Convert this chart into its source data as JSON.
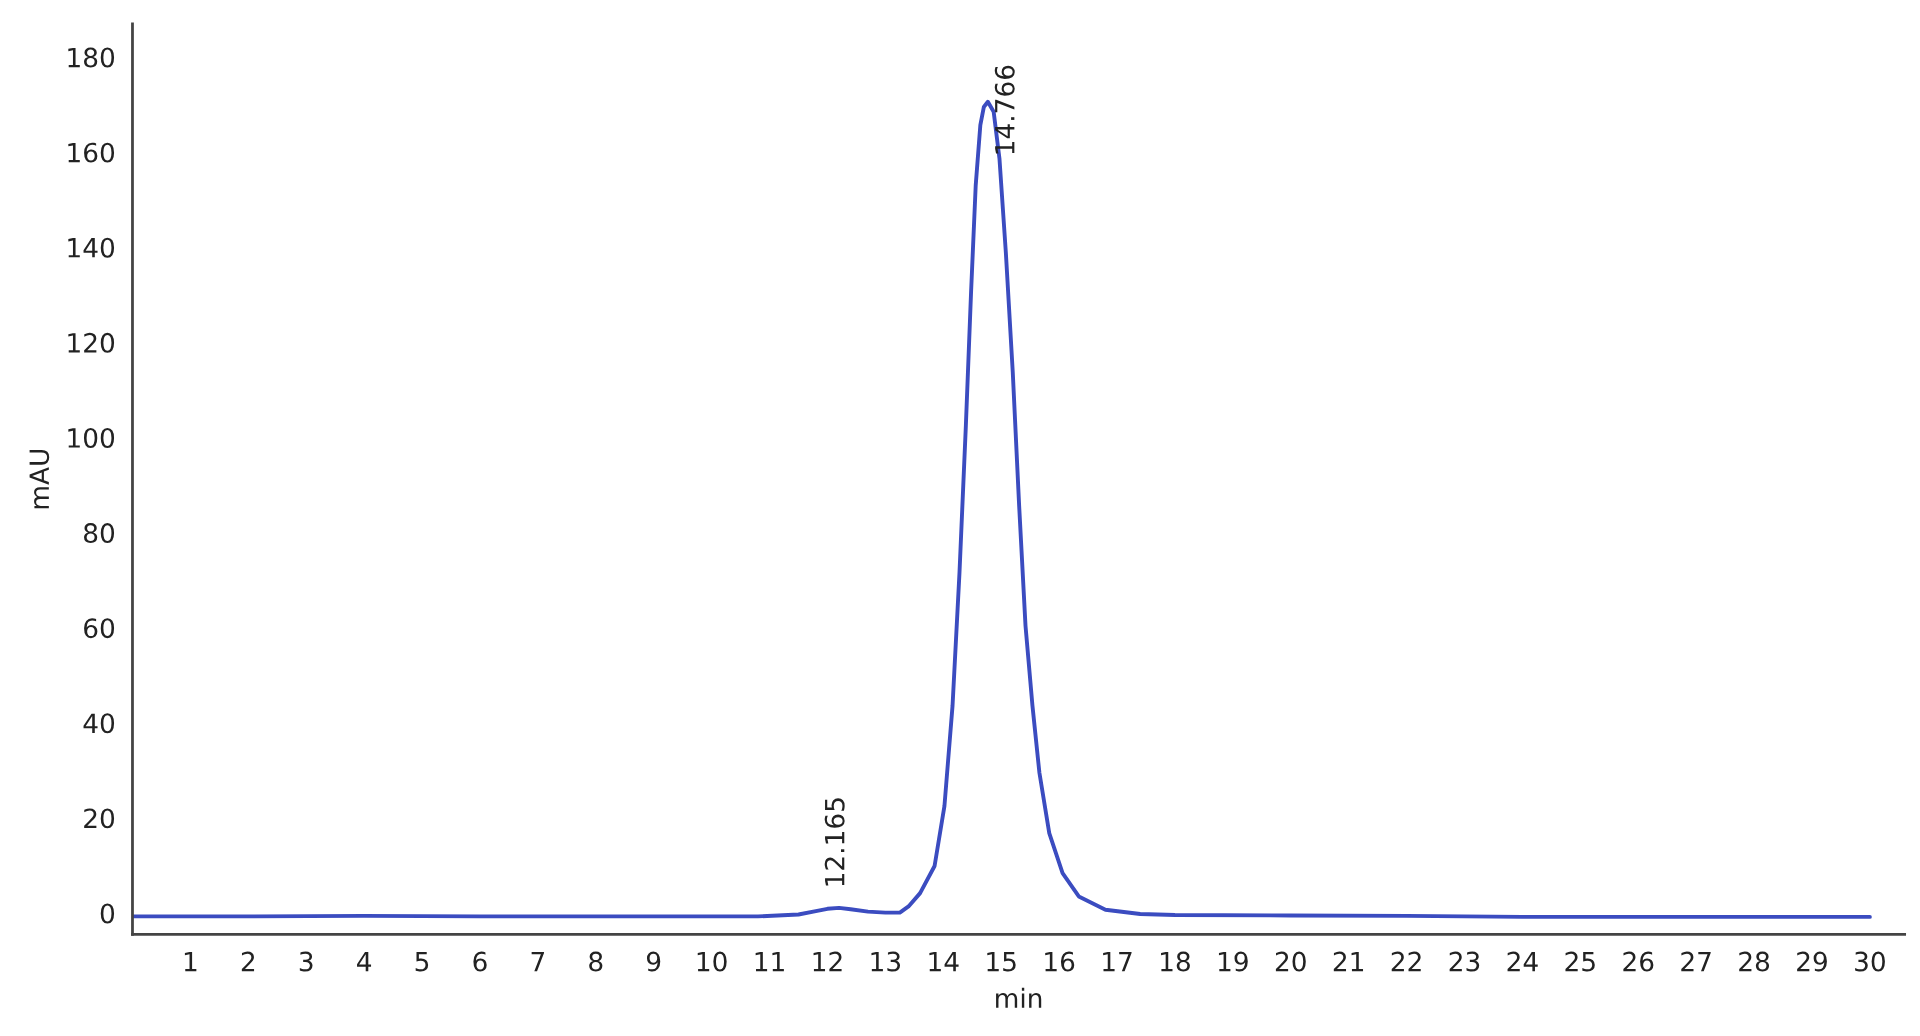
{
  "chart_data": {
    "type": "line",
    "xlabel": "min",
    "ylabel": "mAU",
    "x": [
      0,
      2,
      4,
      6,
      8,
      10,
      10.8,
      11.5,
      11.8,
      12.0,
      12.2,
      12.4,
      12.7,
      13.0,
      13.25,
      13.4,
      13.6,
      13.85,
      14.02,
      14.16,
      14.28,
      14.39,
      14.48,
      14.56,
      14.64,
      14.7,
      14.77,
      14.87,
      14.97,
      15.08,
      15.2,
      15.31,
      15.42,
      15.54,
      15.66,
      15.83,
      16.06,
      16.34,
      16.8,
      17.4,
      18,
      20,
      22,
      24,
      26,
      28,
      30
    ],
    "series": [
      {
        "color": "#3b4cc0",
        "values": [
          -0.7,
          -0.7,
          -0.6,
          -0.7,
          -0.7,
          -0.7,
          -0.7,
          -0.3,
          0.4,
          0.9,
          1.1,
          0.8,
          0.3,
          0.1,
          0.1,
          1.4,
          4.2,
          9.9,
          22.5,
          43.6,
          71.6,
          102.5,
          130.6,
          153,
          165.7,
          169.5,
          170.6,
          168.5,
          158.7,
          139,
          113.7,
          85.7,
          60.4,
          43.6,
          29.5,
          16.8,
          8.4,
          3.5,
          0.7,
          -0.2,
          -0.4,
          -0.5,
          -0.6,
          -0.8,
          -0.8,
          -0.8,
          -0.8
        ]
      }
    ],
    "xlim": [
      0,
      30.6
    ],
    "ylim": [
      -4.5,
      187
    ],
    "xticks": [
      1,
      2,
      3,
      4,
      5,
      6,
      7,
      8,
      9,
      10,
      11,
      12,
      13,
      14,
      15,
      16,
      17,
      18,
      19,
      20,
      21,
      22,
      23,
      24,
      25,
      26,
      27,
      28,
      29,
      30
    ],
    "yticks": [
      0,
      20,
      40,
      60,
      80,
      100,
      120,
      140,
      160,
      180
    ],
    "annotations": [
      {
        "text": "12.165",
        "x": 12.165,
        "y": 1.1
      },
      {
        "text": "14.766",
        "x": 14.766,
        "y": 170.6
      }
    ],
    "grid": false,
    "marker": "none",
    "line_style": "solid"
  }
}
